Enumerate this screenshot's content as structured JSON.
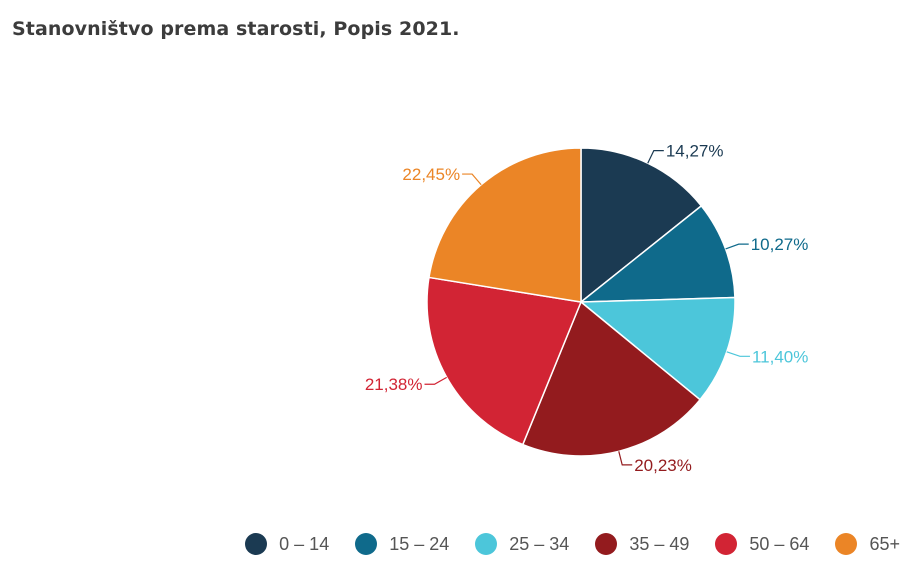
{
  "title": "Stanovništvo prema starosti, Popis 2021.",
  "chart_data": {
    "type": "pie",
    "title": "Stanovništvo prema starosti, Popis 2021.",
    "legend_position": "bottom-right",
    "slices": [
      {
        "label": "0 – 14",
        "value": 14.27,
        "value_label": "14,27%",
        "color": "#1b3a52"
      },
      {
        "label": "15 – 24",
        "value": 10.27,
        "value_label": "10,27%",
        "color": "#0f6a8b"
      },
      {
        "label": "25 – 34",
        "value": 11.4,
        "value_label": "11,40%",
        "color": "#4cc6da"
      },
      {
        "label": "35 – 49",
        "value": 20.23,
        "value_label": "20,23%",
        "color": "#931b1e"
      },
      {
        "label": "50 – 64",
        "value": 21.38,
        "value_label": "21,38%",
        "color": "#d22434"
      },
      {
        "label": "65+",
        "value": 22.45,
        "value_label": "22,45%",
        "color": "#eb8526"
      }
    ]
  }
}
